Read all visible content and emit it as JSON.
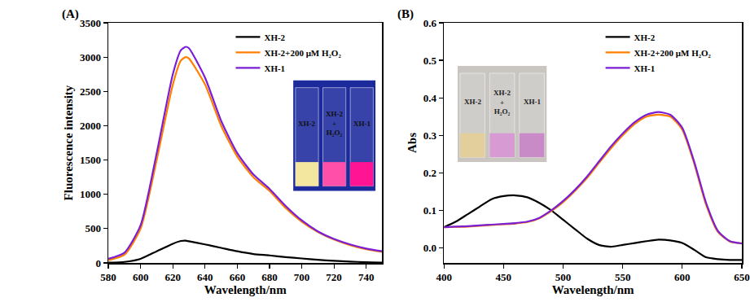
{
  "chart_data": [
    {
      "type": "line",
      "title": "(A)",
      "x_label": "Wavelength/nm",
      "y_label": "Fluorescence intensity",
      "x": [
        580,
        590,
        600,
        610,
        620,
        625,
        628,
        630,
        640,
        650,
        660,
        670,
        680,
        690,
        700,
        710,
        720,
        730,
        740,
        750
      ],
      "series": [
        {
          "name": "XH-2",
          "color": "#000000",
          "values": [
            5,
            15,
            60,
            170,
            280,
            320,
            325,
            315,
            270,
            220,
            170,
            130,
            110,
            85,
            65,
            45,
            30,
            20,
            10,
            5
          ]
        },
        {
          "name": "XH-2+200 μM H₂O₂",
          "color": "#ff8000",
          "values": [
            40,
            120,
            500,
            1500,
            2600,
            2950,
            3000,
            2980,
            2600,
            2000,
            1550,
            1250,
            1050,
            800,
            600,
            450,
            340,
            260,
            200,
            160
          ]
        },
        {
          "name": "XH-1",
          "color": "#7b1fd6",
          "values": [
            60,
            150,
            550,
            1600,
            2750,
            3100,
            3150,
            3130,
            2700,
            2070,
            1600,
            1290,
            1080,
            830,
            620,
            460,
            350,
            270,
            210,
            170
          ]
        }
      ],
      "xlim": [
        580,
        750
      ],
      "xticks": [
        580,
        600,
        620,
        640,
        660,
        680,
        700,
        720,
        740
      ],
      "ylim": [
        0,
        3500
      ],
      "yticks": [
        0,
        500,
        1000,
        1500,
        2000,
        2500,
        3000,
        3500
      ],
      "grid": false,
      "legend": "top right",
      "inset_labels": [
        [
          "XH-2"
        ],
        [
          "XH-2",
          "+",
          "H₂O₂"
        ],
        [
          "XH-1"
        ]
      ]
    },
    {
      "type": "line",
      "title": "(B)",
      "x_label": "Wavelength/nm",
      "y_label": "Abs",
      "x": [
        400,
        410,
        420,
        430,
        440,
        450,
        460,
        470,
        480,
        490,
        500,
        510,
        520,
        530,
        540,
        550,
        560,
        570,
        580,
        590,
        600,
        610,
        620,
        630,
        640,
        650
      ],
      "series": [
        {
          "name": "XH-2",
          "color": "#000000",
          "values": [
            0.055,
            0.07,
            0.09,
            0.11,
            0.13,
            0.138,
            0.14,
            0.135,
            0.12,
            0.1,
            0.075,
            0.05,
            0.025,
            0.008,
            0.003,
            0.008,
            0.013,
            0.018,
            0.022,
            0.02,
            0.013,
            -0.005,
            -0.025,
            -0.03,
            -0.032,
            -0.032
          ]
        },
        {
          "name": "XH-2+200 μM H₂O₂",
          "color": "#ff8000",
          "values": [
            0.055,
            0.056,
            0.057,
            0.059,
            0.061,
            0.063,
            0.065,
            0.069,
            0.079,
            0.098,
            0.122,
            0.152,
            0.186,
            0.226,
            0.265,
            0.3,
            0.33,
            0.35,
            0.355,
            0.35,
            0.315,
            0.225,
            0.115,
            0.042,
            0.017,
            0.012
          ]
        },
        {
          "name": "XH-1",
          "color": "#7b1fd6",
          "values": [
            0.055,
            0.057,
            0.058,
            0.06,
            0.062,
            0.064,
            0.066,
            0.07,
            0.08,
            0.1,
            0.125,
            0.155,
            0.19,
            0.23,
            0.27,
            0.305,
            0.335,
            0.355,
            0.362,
            0.355,
            0.32,
            0.23,
            0.12,
            0.045,
            0.018,
            0.012
          ]
        }
      ],
      "xlim": [
        400,
        650
      ],
      "xticks": [
        400,
        450,
        500,
        550,
        600,
        650
      ],
      "ylim": [
        -0.04,
        0.6
      ],
      "yticks": [
        {
          "value": 0,
          "label": "0.0"
        },
        0.1,
        0.2,
        0.3,
        0.4,
        0.5,
        0.6
      ],
      "grid": false,
      "legend": "top right",
      "inset_labels": [
        [
          "XH-2"
        ],
        [
          "XH-2",
          "+",
          "H₂O₂"
        ],
        [
          "XH-1"
        ]
      ]
    }
  ]
}
